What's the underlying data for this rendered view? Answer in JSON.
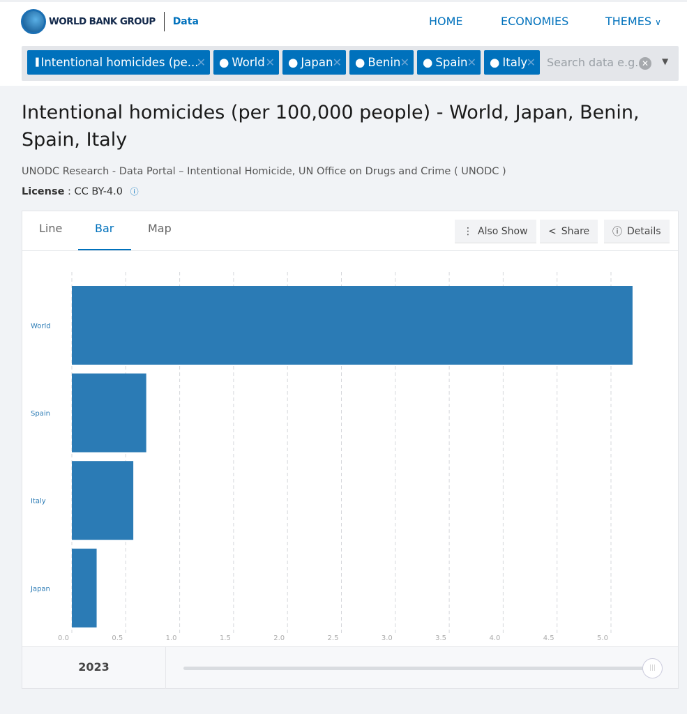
{
  "header": {
    "brand": "WORLD BANK GROUP",
    "section": "Data",
    "nav": [
      "HOME",
      "ECONOMIES",
      "THEMES"
    ]
  },
  "filters": {
    "chips": [
      {
        "icon": "bar-chart-icon",
        "label": "Intentional homicides (pe..."
      },
      {
        "icon": "location-pin-icon",
        "label": "World"
      },
      {
        "icon": "location-pin-icon",
        "label": "Japan"
      },
      {
        "icon": "location-pin-icon",
        "label": "Benin"
      },
      {
        "icon": "location-pin-icon",
        "label": "Spain"
      },
      {
        "icon": "location-pin-icon",
        "label": "Italy"
      }
    ],
    "placeholder": "Search data e.g."
  },
  "page": {
    "title": "Intentional homicides (per 100,000 people) - World, Japan, Benin, Spain, Italy",
    "source": "UNODC Research - Data Portal – Intentional Homicide, UN Office on Drugs and Crime ( UNODC )",
    "license_label": "License",
    "license_value": ": CC BY-4.0"
  },
  "tabs": [
    "Line",
    "Bar",
    "Map"
  ],
  "active_tab": "Bar",
  "actions": [
    "Also Show",
    "Share",
    "Details"
  ],
  "year": "2023",
  "slider": {
    "value": "2023",
    "position": 1.0
  },
  "colors": {
    "accent": "#0071bc",
    "bar": "#2b7bb5"
  },
  "chart_data": {
    "type": "bar",
    "orientation": "horizontal",
    "categories": [
      "World",
      "Spain",
      "Italy",
      "Japan"
    ],
    "values": [
      5.2,
      0.69,
      0.57,
      0.23
    ],
    "xlim": [
      0,
      5.2
    ],
    "xticks": [
      "0.0",
      "0.5",
      "1.0",
      "1.5",
      "2.0",
      "2.5",
      "3.0",
      "3.5",
      "4.0",
      "4.5",
      "5.0"
    ],
    "grid": true
  }
}
